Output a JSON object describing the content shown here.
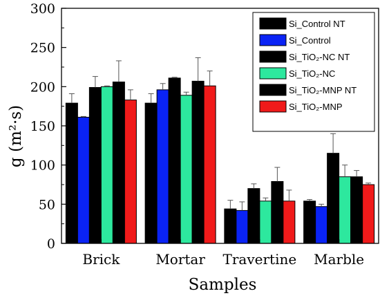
{
  "chart_data": {
    "type": "bar",
    "xlabel": "Samples",
    "ylabel": "g (m²·s)",
    "ylim": [
      0,
      300
    ],
    "yticks": [
      0,
      50,
      100,
      150,
      200,
      250,
      300
    ],
    "grid": false,
    "legend_position": "top-right",
    "categories": [
      "Brick",
      "Mortar",
      "Travertine",
      "Marble"
    ],
    "series": [
      {
        "name": "Si_Control NT",
        "color": "#000000",
        "values": [
          179,
          179,
          44,
          54
        ],
        "errors": [
          12,
          12,
          11,
          2
        ]
      },
      {
        "name": "Si_Control",
        "color": "#0a23f5",
        "values": [
          161,
          196,
          42,
          47
        ],
        "errors": [
          1,
          8,
          11,
          3
        ]
      },
      {
        "name": "Si_TiO₂-NC NT",
        "color": "#000000",
        "values": [
          199,
          211,
          70,
          115
        ],
        "errors": [
          14,
          1,
          6,
          25
        ]
      },
      {
        "name": "Si_TiO₂-NC",
        "color": "#2de89e",
        "values": [
          200,
          189,
          54,
          85
        ],
        "errors": [
          1,
          4,
          4,
          15
        ]
      },
      {
        "name": "Si_TiO₂-MNP NT",
        "color": "#000000",
        "values": [
          206,
          207,
          79,
          85
        ],
        "errors": [
          27,
          30,
          18,
          8
        ]
      },
      {
        "name": "Si_TiO₂-MNP",
        "color": "#f01a1a",
        "values": [
          183,
          201,
          54,
          75
        ],
        "errors": [
          13,
          19,
          14,
          2
        ]
      }
    ]
  }
}
